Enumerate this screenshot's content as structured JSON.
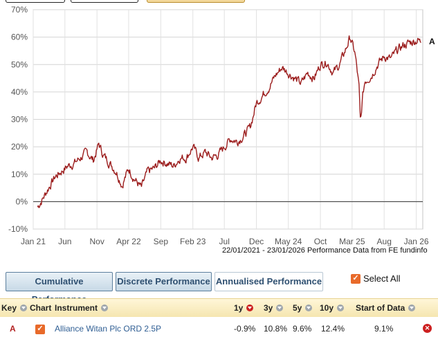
{
  "chart_data": {
    "type": "line",
    "x_ticks": [
      "Jan 21",
      "Jun",
      "Nov",
      "Apr 22",
      "Sep",
      "Feb 23",
      "Jul",
      "Dec",
      "May 24",
      "Oct",
      "Mar 25",
      "Aug",
      "Jan 26"
    ],
    "y_ticks": [
      "70%",
      "60%",
      "50%",
      "40%",
      "30%",
      "20%",
      "10%",
      "0%",
      "-10%"
    ],
    "ylim": [
      -10,
      70
    ],
    "grid": "vertical and horizontal",
    "series": [
      {
        "name": "A",
        "color": "#9b1c1c",
        "x": [
          "2021-01-22",
          "2021-02-15",
          "2021-03-15",
          "2021-04-15",
          "2021-05-15",
          "2021-06-15",
          "2021-07-15",
          "2021-08-15",
          "2021-09-15",
          "2021-10-15",
          "2021-11-10",
          "2021-12-01",
          "2022-01-01",
          "2022-02-01",
          "2022-03-01",
          "2022-04-01",
          "2022-05-01",
          "2022-06-01",
          "2022-07-01",
          "2022-08-01",
          "2022-09-01",
          "2022-10-01",
          "2022-11-01",
          "2022-12-01",
          "2023-01-01",
          "2023-02-01",
          "2023-03-01",
          "2023-04-01",
          "2023-05-01",
          "2023-06-01",
          "2023-07-01",
          "2023-08-01",
          "2023-09-01",
          "2023-10-01",
          "2023-11-01",
          "2023-12-01",
          "2024-01-01",
          "2024-02-01",
          "2024-03-01",
          "2024-04-01",
          "2024-05-01",
          "2024-06-01",
          "2024-07-01",
          "2024-08-01",
          "2024-09-01",
          "2024-10-01",
          "2024-11-01",
          "2024-12-01",
          "2025-01-01",
          "2025-02-01",
          "2025-02-20",
          "2025-03-15",
          "2025-04-03",
          "2025-04-10",
          "2025-04-20",
          "2025-05-01",
          "2025-06-01",
          "2025-07-01",
          "2025-08-01",
          "2025-09-01",
          "2025-10-01",
          "2025-11-01",
          "2025-12-01",
          "2026-01-10",
          "2026-01-23"
        ],
        "values": [
          -2,
          1,
          5,
          9,
          11,
          13,
          14,
          16,
          18,
          15,
          21,
          17,
          14,
          11,
          6,
          12,
          8,
          5,
          11,
          12,
          15,
          14,
          13,
          16,
          16,
          20,
          16,
          18,
          16,
          17,
          20,
          23,
          22,
          24,
          27,
          36,
          39,
          42,
          46,
          49,
          47,
          45,
          43,
          47,
          45,
          50,
          51,
          47,
          50,
          56,
          60,
          54,
          42,
          28,
          38,
          44,
          46,
          50,
          53,
          52,
          55,
          57,
          58,
          59,
          58
        ]
      }
    ]
  },
  "period_label": "22/01/2021 - 23/01/2026 Performance Data from FE fundinfo",
  "tabs": [
    {
      "label": "Cumulative Performance",
      "state": "inactive"
    },
    {
      "label": "Discrete Performance",
      "state": "inactive"
    },
    {
      "label": "Annualised Performance",
      "state": "active"
    }
  ],
  "select_all": {
    "label": "Select All",
    "checked": true
  },
  "table": {
    "headers": {
      "key": "Key",
      "chart": "Chart",
      "instrument": "Instrument",
      "y1": "1y",
      "y3": "3y",
      "y5": "5y",
      "y10": "10y",
      "start": "Start of Data"
    },
    "rows": [
      {
        "key": "A",
        "chart_checked": true,
        "instrument": "Alliance Witan Plc ORD 2.5P",
        "y1": "-0.9%",
        "y3": "10.8%",
        "y5": "9.6%",
        "y10": "12.4%",
        "start": "9.1%"
      }
    ]
  },
  "icons": {
    "checkmark": "check-icon",
    "remove": "remove-icon",
    "sort": "sort-arrow-icon"
  }
}
